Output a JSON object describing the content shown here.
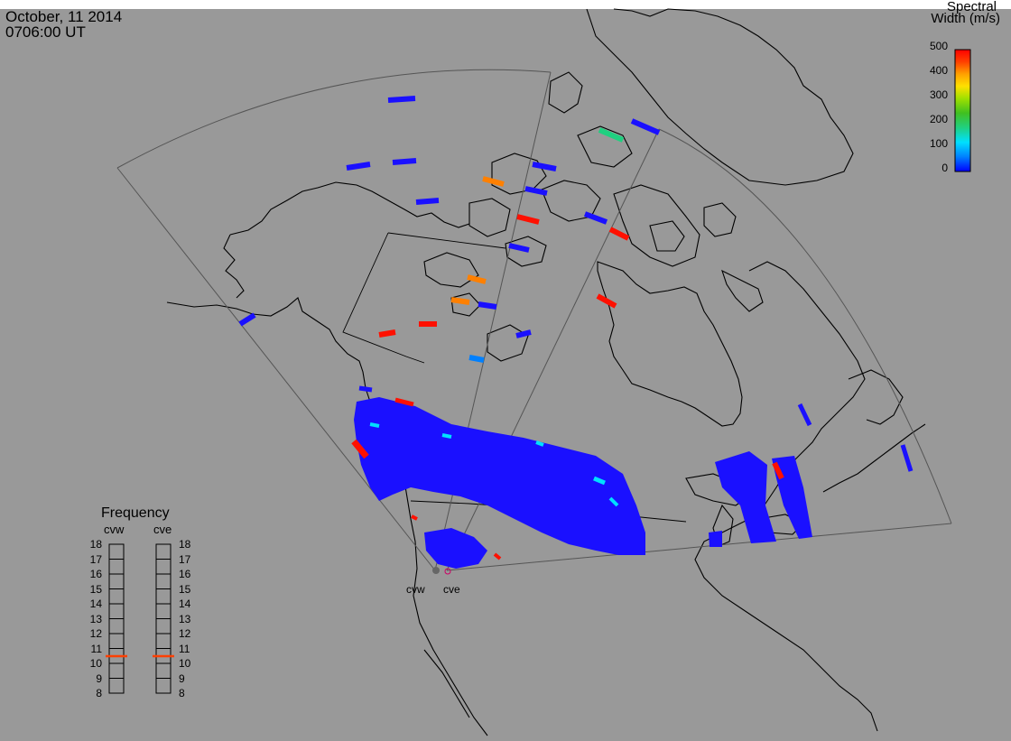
{
  "header": {
    "date": "October, 11 2014",
    "time": "0706:00 UT"
  },
  "colorbar": {
    "title_line1": "Spectral",
    "title_line2": "Width (m/s)",
    "ticks": [
      "0",
      "100",
      "200",
      "300",
      "400",
      "500"
    ],
    "min": 0,
    "max": 500,
    "gradient": [
      "#0000ff",
      "#0080ff",
      "#00e0ff",
      "#00d0a0",
      "#30c030",
      "#80d000",
      "#e0e000",
      "#ffa000",
      "#ff4000",
      "#ff0000"
    ]
  },
  "frequency_panel": {
    "title": "Frequency",
    "radars": [
      {
        "name": "cvw",
        "freq_mhz": 10.5
      },
      {
        "name": "cve",
        "freq_mhz": 10.5
      }
    ],
    "scale": [
      "18",
      "17",
      "16",
      "15",
      "14",
      "13",
      "12",
      "11",
      "10",
      "9",
      "8"
    ],
    "marker_color": "#ff4000"
  },
  "radar_sites": [
    {
      "name": "cvw"
    },
    {
      "name": "cve"
    }
  ],
  "colors": {
    "background": "#999999",
    "coastline": "#000000",
    "fov_outline": "#555555",
    "low_width": "#1a10ff"
  }
}
